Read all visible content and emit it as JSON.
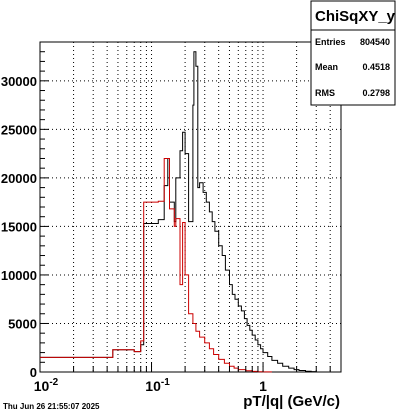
{
  "chart_data": {
    "type": "step",
    "title": "ChiSqXY_y",
    "xlabel": "pT/|q| (GeV/c)",
    "ylabel": "",
    "x_scale": "log",
    "xlim": [
      0.01,
      5.0
    ],
    "ylim": [
      0,
      34000
    ],
    "grid": true,
    "x_tick_labels": [
      {
        "value": 0.01,
        "label_base": "10",
        "label_exp": "-2"
      },
      {
        "value": 0.1,
        "label_base": "10",
        "label_exp": "-1"
      },
      {
        "value": 1,
        "label_base": "1",
        "label_exp": ""
      }
    ],
    "y_ticks": [
      0,
      5000,
      10000,
      15000,
      20000,
      25000,
      30000
    ],
    "stats": {
      "name": "ChiSqXY_y",
      "entries_label": "Entries",
      "entries": "804540",
      "mean_label": "Mean",
      "mean": "0.4518",
      "rms_label": "RMS",
      "rms": "0.2798"
    },
    "series": [
      {
        "color": "#000000",
        "edges": [
          0.01,
          0.045,
          0.07,
          0.08,
          0.085,
          0.115,
          0.13,
          0.14,
          0.145,
          0.16,
          0.165,
          0.18,
          0.19,
          0.2,
          0.215,
          0.235,
          0.24,
          0.25,
          0.26,
          0.27,
          0.29,
          0.31,
          0.33,
          0.35,
          0.37,
          0.4,
          0.43,
          0.46,
          0.5,
          0.53,
          0.56,
          0.6,
          0.64,
          0.68,
          0.72,
          0.76,
          0.8,
          0.85,
          0.9,
          0.95,
          1.0,
          1.1,
          1.2,
          1.35,
          1.5,
          1.7,
          1.9,
          2.1,
          2.4,
          2.7,
          3.0,
          3.4
        ],
        "counts": [
          1500,
          2300,
          2100,
          2800,
          15300,
          15700,
          19200,
          22000,
          17500,
          15500,
          20000,
          22800,
          24700,
          22500,
          15500,
          27500,
          33000,
          31500,
          19000,
          19500,
          18500,
          17500,
          16500,
          15500,
          14500,
          13000,
          12000,
          10500,
          9000,
          8000,
          7500,
          6800,
          6300,
          5500,
          4800,
          4300,
          3800,
          3300,
          2800,
          2400,
          2000,
          1600,
          1200,
          900,
          600,
          400,
          250,
          150,
          80,
          40,
          0
        ]
      },
      {
        "color": "#cc0000",
        "edges": [
          0.01,
          0.045,
          0.07,
          0.08,
          0.085,
          0.115,
          0.13,
          0.14,
          0.145,
          0.16,
          0.165,
          0.18,
          0.19,
          0.2,
          0.215,
          0.235,
          0.25,
          0.27,
          0.3,
          0.33,
          0.36,
          0.4,
          0.45,
          0.5,
          0.55,
          0.6,
          0.7,
          0.8,
          0.9,
          1.0,
          1.2
        ],
        "counts": [
          1500,
          2300,
          2100,
          3200,
          17500,
          17600,
          22000,
          22000,
          16800,
          15000,
          15800,
          9000,
          15400,
          10000,
          6000,
          5000,
          4200,
          3600,
          3000,
          2400,
          1800,
          1300,
          900,
          600,
          400,
          250,
          120,
          60,
          30,
          10
        ]
      }
    ]
  },
  "footer": {
    "timestamp": "Thu Jun 26 21:55:07 2025"
  }
}
